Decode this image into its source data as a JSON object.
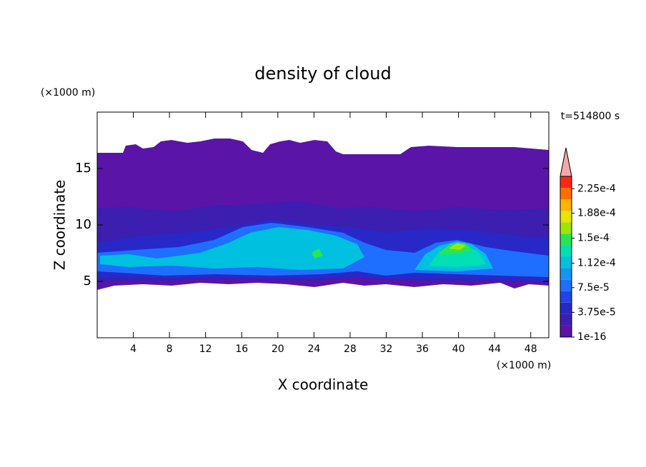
{
  "chart_data": {
    "type": "contour",
    "title": "density of cloud",
    "x_label": "X coordinate",
    "y_label": "Z coordinate",
    "x_unit": "(×1000 m)",
    "y_unit": "(×1000 m)",
    "annotation": "t=514800 s",
    "xlim": [
      0,
      50
    ],
    "ylim": [
      0,
      20
    ],
    "xticks": [
      4,
      8,
      12,
      16,
      20,
      24,
      28,
      32,
      36,
      40,
      44,
      48
    ],
    "yticks": [
      5,
      10,
      15
    ],
    "colorbar": {
      "lim": [
        1e-16,
        0.00024375
      ],
      "ticks": [
        1e-16,
        {
          "value": 3.75e-05,
          "label": "3.75e-5"
        },
        {
          "value": 7.5e-05,
          "label": "7.5e-5"
        },
        {
          "value": 0.000112,
          "label": "1.12e-4"
        },
        {
          "value": 0.00015,
          "label": "1.5e-4"
        },
        {
          "value": 0.000188,
          "label": "1.88e-4"
        },
        {
          "value": 0.000225,
          "label": "2.25e-4"
        }
      ],
      "colors": [
        "#5a14a8",
        "#3c1eb0",
        "#2828c8",
        "#1e46e6",
        "#1e6eff",
        "#1496f0",
        "#00c0e0",
        "#00e0b4",
        "#28e650",
        "#9ee600",
        "#e6e600",
        "#ffb400",
        "#ff6e00",
        "#ff2814"
      ],
      "extend_color": "#f4a8a8"
    }
  }
}
